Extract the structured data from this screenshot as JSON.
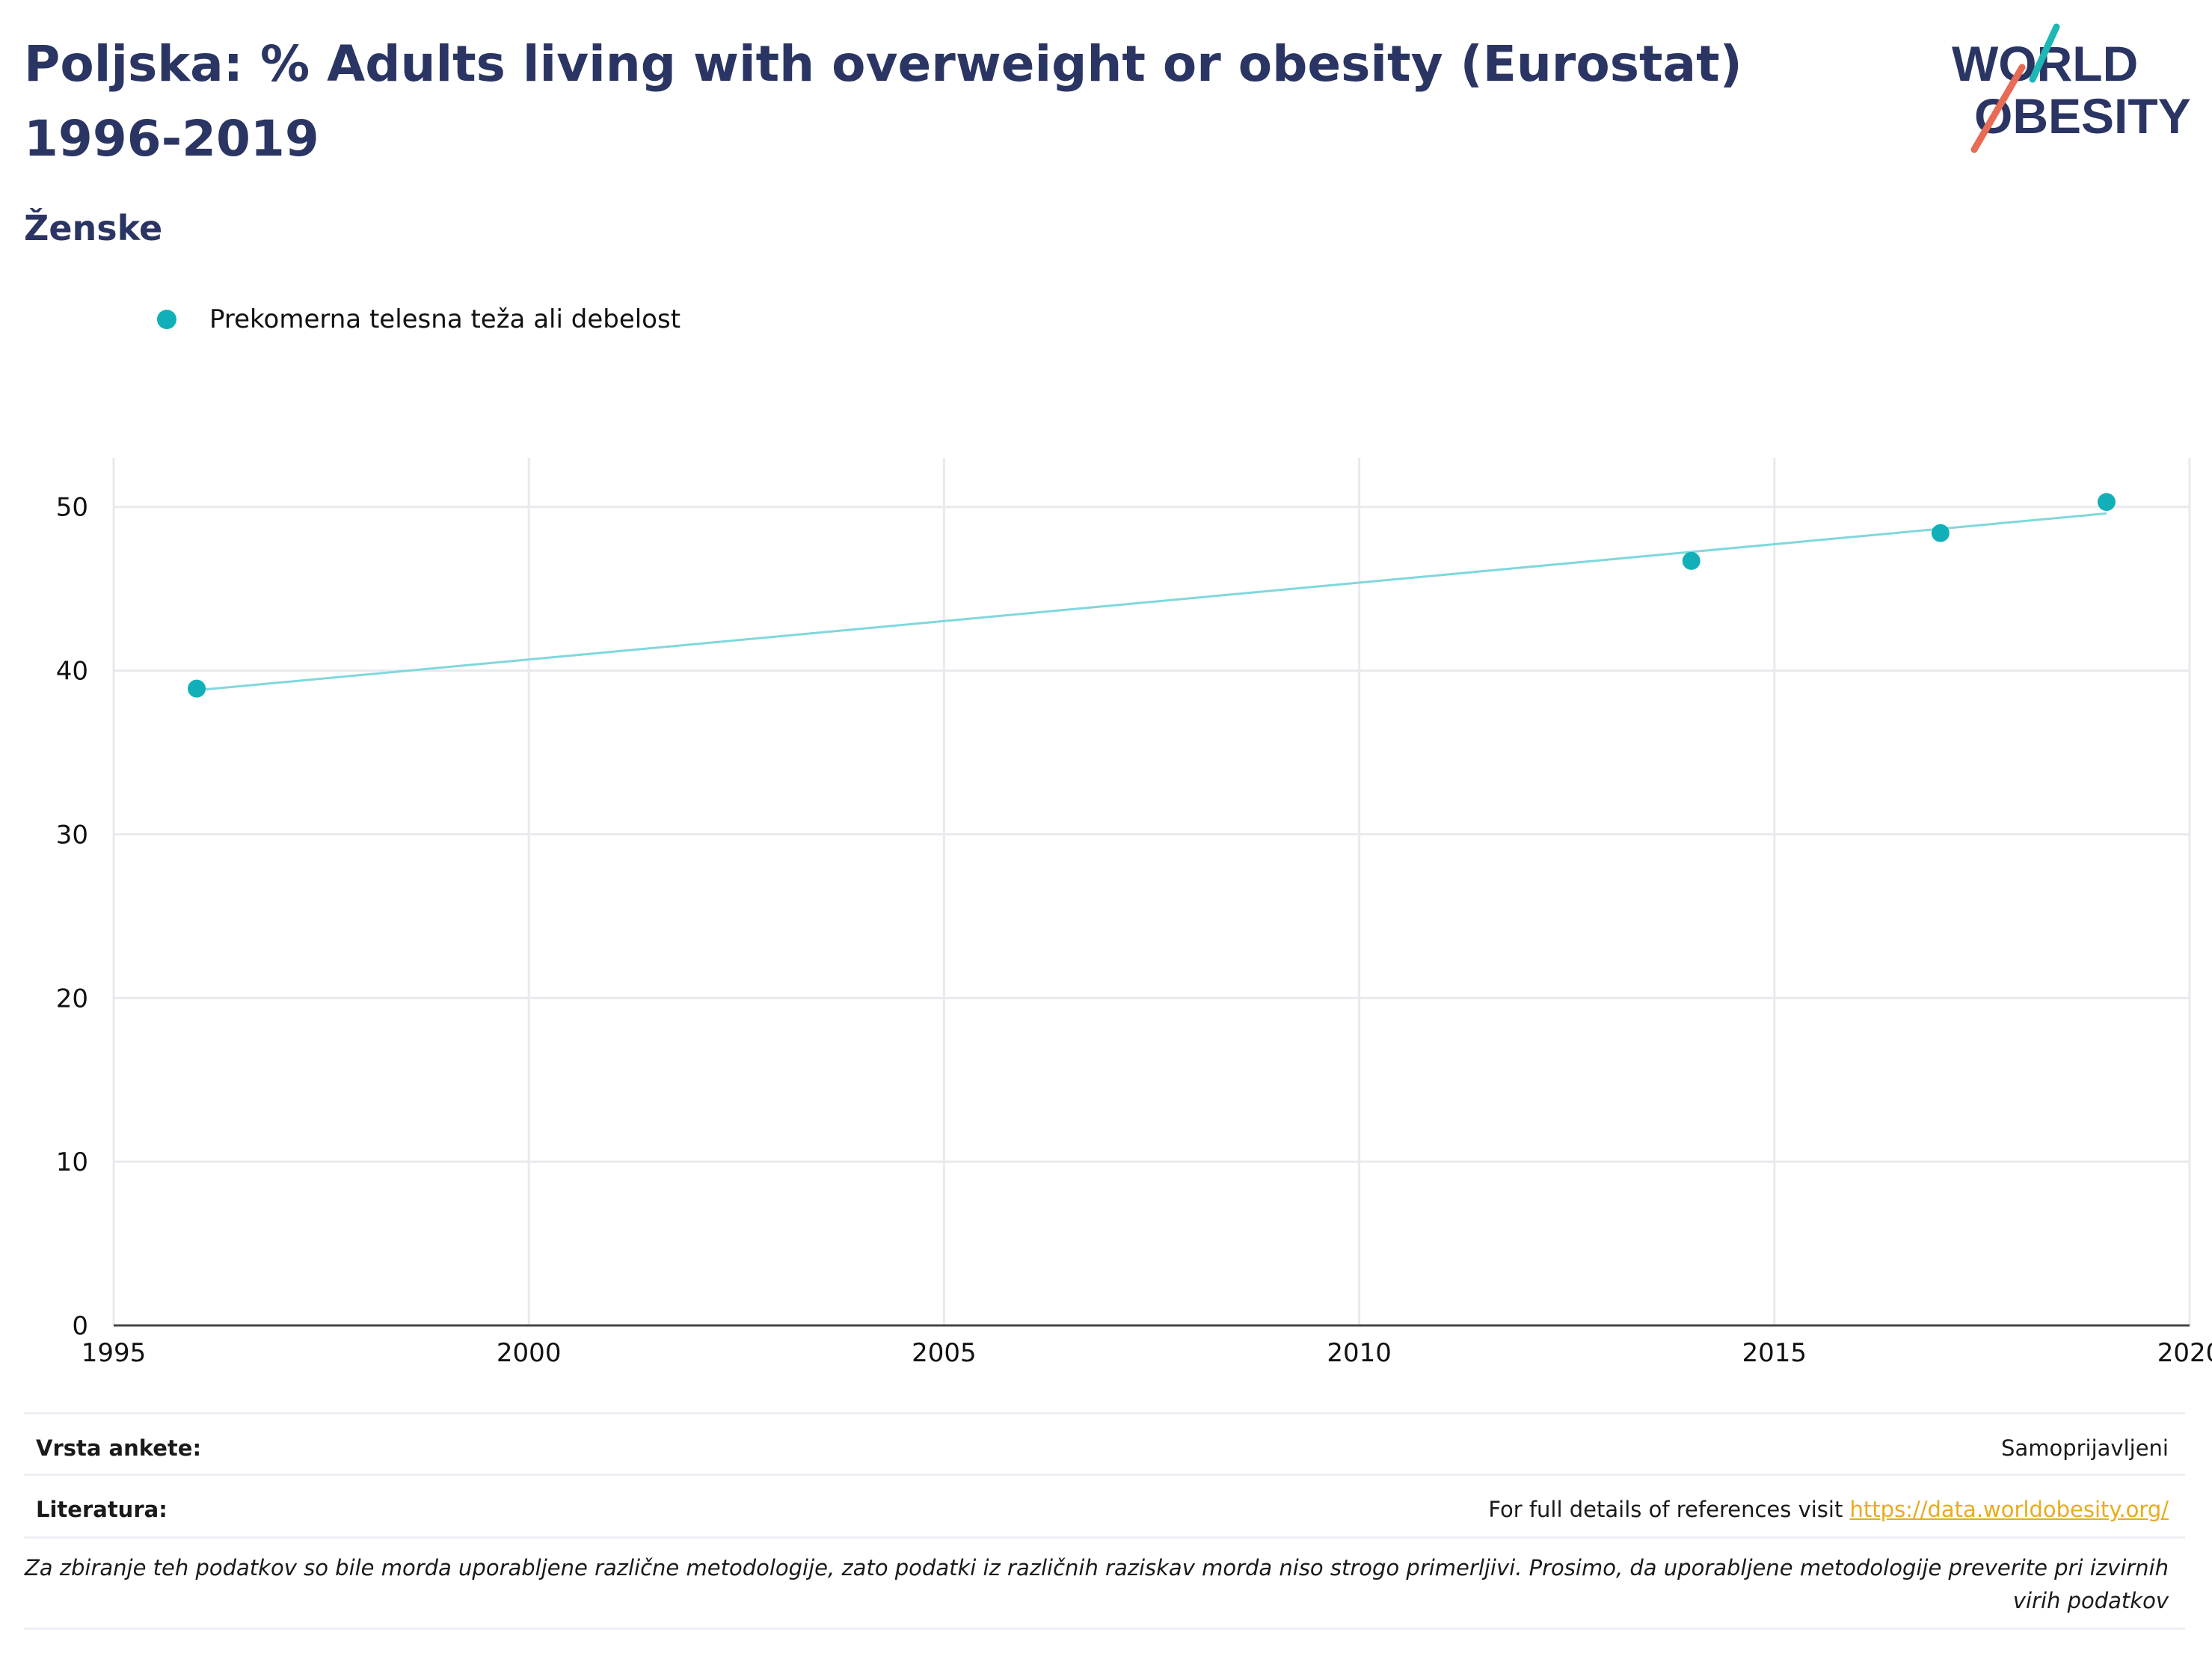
{
  "header": {
    "title": "Poljska: % Adults living with overweight or obesity (Eurostat) 1996-2019",
    "subtitle": "Ženske"
  },
  "logo": {
    "line1": "WORLD",
    "line2": "OBESITY",
    "text_color": "#2a3563",
    "slash_colors": [
      "#1fb6b6",
      "#e86b55"
    ]
  },
  "colors": {
    "marker": "#11b0b8",
    "trend_line": "#7fd8dc",
    "grid": "#e9e9ee",
    "link": "#e8ac1a",
    "title": "#2a3563"
  },
  "chart_data": {
    "type": "scatter",
    "title": "Poljska: % Adults living with overweight or obesity (Eurostat) 1996-2019",
    "xlabel": "",
    "ylabel": "",
    "xlim": [
      1995,
      2020
    ],
    "ylim": [
      0,
      53
    ],
    "x_ticks": [
      1995,
      2000,
      2005,
      2010,
      2015,
      2020
    ],
    "y_ticks": [
      0,
      10,
      20,
      30,
      40,
      50
    ],
    "grid": true,
    "legend_position": "top-left",
    "series": [
      {
        "name": "Prekomerna telesna teža ali debelost",
        "x": [
          1996,
          2014,
          2017,
          2019
        ],
        "y": [
          38.9,
          46.7,
          48.4,
          50.3
        ]
      }
    ],
    "trend_line": {
      "x": [
        1996,
        2019
      ],
      "y": [
        38.8,
        49.6
      ]
    }
  },
  "footer": {
    "survey_label": "Vrsta ankete:",
    "survey_value": "Samoprijavljeni",
    "references_label": "Literatura:",
    "references_text": "For full details of references visit ",
    "references_link": "https://data.worldobesity.org/",
    "note": "Za zbiranje teh podatkov so bile morda uporabljene različne metodologije, zato podatki iz različnih raziskav morda niso strogo primerljivi. Prosimo, da uporabljene metodologije preverite pri izvirnih virih podatkov"
  }
}
